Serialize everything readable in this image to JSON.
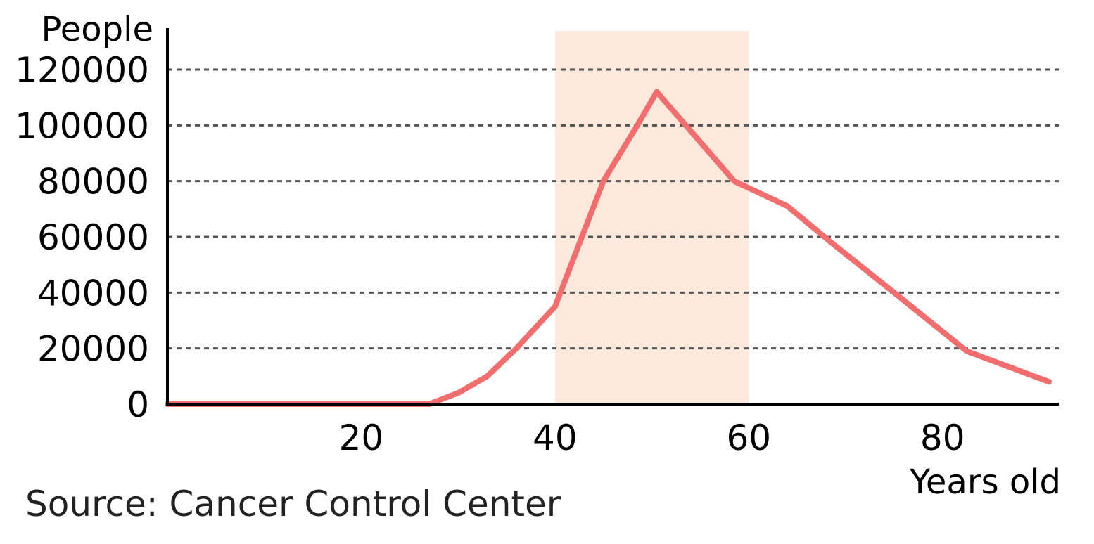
{
  "chart_data": {
    "type": "line",
    "title": "",
    "xlabel": "Years old",
    "ylabel": "People",
    "xlim": [
      0,
      92
    ],
    "ylim": [
      0,
      120000
    ],
    "x_ticks": [
      20,
      40,
      60,
      80
    ],
    "y_ticks": [
      0,
      20000,
      40000,
      60000,
      80000,
      100000,
      120000
    ],
    "grid": "horizontal dashed",
    "highlight_band": {
      "from": 40,
      "to": 60,
      "color": "#fde9dc"
    },
    "line_color": "#f26d6d",
    "series": [
      {
        "x": [
          0,
          27,
          30,
          33,
          36,
          40,
          45,
          48.5,
          50.5,
          58.5,
          64,
          68.5,
          75,
          82.5,
          91
        ],
        "y": [
          0,
          0,
          4000,
          10000,
          20000,
          35000,
          80000,
          100000,
          112000,
          80000,
          71000,
          58000,
          40000,
          19000,
          8000
        ]
      }
    ]
  },
  "source": "Source: Cancer Control Center"
}
